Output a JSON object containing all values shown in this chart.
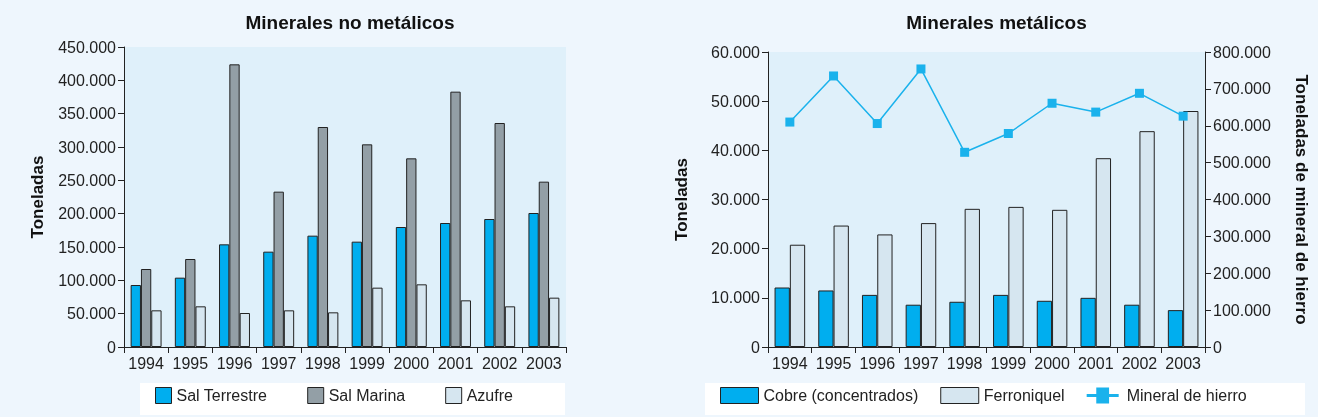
{
  "chart_data": [
    {
      "type": "bar",
      "title": "Minerales no metálicos",
      "ylabel": "Toneladas",
      "categories": [
        "1994",
        "1995",
        "1996",
        "1997",
        "1998",
        "1999",
        "2000",
        "2001",
        "2002",
        "2003"
      ],
      "series": [
        {
          "name": "Sal Terrestre",
          "color": "#00aeef",
          "values": [
            93000,
            104000,
            154000,
            143000,
            167000,
            158000,
            180000,
            186000,
            192000,
            201000
          ]
        },
        {
          "name": "Sal Marina",
          "color": "#939fa6",
          "values": [
            117000,
            132000,
            424000,
            233000,
            330000,
            304000,
            283000,
            383000,
            336000,
            248000
          ]
        },
        {
          "name": "Azufre",
          "color": "#d6e6f0",
          "values": [
            55000,
            61000,
            51000,
            55000,
            52000,
            89000,
            94000,
            70000,
            61000,
            74000
          ]
        }
      ],
      "ylim": [
        0,
        450000
      ],
      "yticks": [
        {
          "value": 0,
          "label": "0"
        },
        {
          "value": 50000,
          "label": "50.000"
        },
        {
          "value": 100000,
          "label": "100.000"
        },
        {
          "value": 150000,
          "label": "150.000"
        },
        {
          "value": 200000,
          "label": "200.000"
        },
        {
          "value": 250000,
          "label": "250.000"
        },
        {
          "value": 300000,
          "label": "300.000"
        },
        {
          "value": 350000,
          "label": "350.000"
        },
        {
          "value": 400000,
          "label": "400.000"
        },
        {
          "value": 450000,
          "label": "450.000"
        }
      ],
      "grid": false,
      "legend": "bottom"
    },
    {
      "type": "bar",
      "title": "Minerales metálicos",
      "ylabel": "Toneladas",
      "y2label": "Toneladas de mineral de hierro",
      "categories": [
        "1994",
        "1995",
        "1996",
        "1997",
        "1998",
        "1999",
        "2000",
        "2001",
        "2002",
        "2003"
      ],
      "series": [
        {
          "name": "Cobre (concentrados)",
          "color": "#00aeef",
          "values": [
            12100,
            11500,
            10600,
            8600,
            9200,
            10600,
            9400,
            10000,
            8600,
            7500
          ]
        },
        {
          "name": "Ferroniquel",
          "color": "#d6e6f0",
          "values": [
            20800,
            24700,
            22900,
            25200,
            28100,
            28500,
            27900,
            38400,
            43900,
            48000
          ]
        },
        {
          "name": "Mineral de hierro",
          "type": "line",
          "axis": "y2",
          "color": "#1ab2ec",
          "marker": "square",
          "values": [
            610000,
            735000,
            606000,
            754000,
            528000,
            579000,
            661000,
            637000,
            688000,
            626000
          ]
        }
      ],
      "ylim": [
        0,
        60000
      ],
      "yticks": [
        {
          "value": 0,
          "label": "0"
        },
        {
          "value": 10000,
          "label": "10.000"
        },
        {
          "value": 20000,
          "label": "20.000"
        },
        {
          "value": 30000,
          "label": "30.000"
        },
        {
          "value": 40000,
          "label": "40.000"
        },
        {
          "value": 50000,
          "label": "50.000"
        },
        {
          "value": 60000,
          "label": "60.000"
        }
      ],
      "y2lim": [
        0,
        800000
      ],
      "y2ticks": [
        {
          "value": 0,
          "label": "0"
        },
        {
          "value": 100000,
          "label": "100.000"
        },
        {
          "value": 200000,
          "label": "200.000"
        },
        {
          "value": 300000,
          "label": "300.000"
        },
        {
          "value": 400000,
          "label": "400.000"
        },
        {
          "value": 500000,
          "label": "500.000"
        },
        {
          "value": 600000,
          "label": "600.000"
        },
        {
          "value": 700000,
          "label": "700.000"
        },
        {
          "value": 800000,
          "label": "800.000"
        }
      ],
      "grid": false,
      "legend": "bottom"
    }
  ]
}
